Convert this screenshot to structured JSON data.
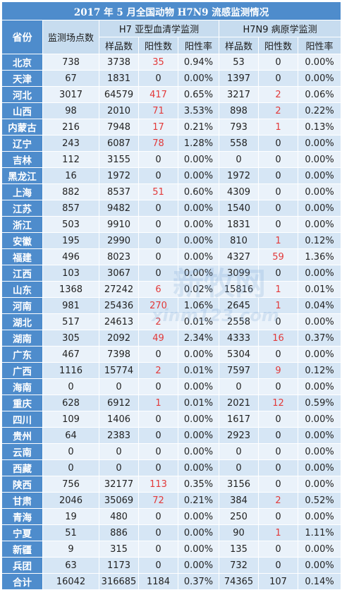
{
  "title": "2017 年 5 月全国动物 H7N9 流感监测情况",
  "headers": {
    "province": "省份",
    "sites": "监测场点数",
    "h7_group": "H7 亚型血清学监测",
    "h7n9_group": "H7N9 病原学监测",
    "samples": "样品数",
    "positives": "阳性数",
    "rate": "阳性率"
  },
  "rows": [
    {
      "province": "北京",
      "sites": "738",
      "h7_samples": "3738",
      "h7_pos": "35",
      "h7_rate": "0.94%",
      "n9_samples": "53",
      "n9_pos": "0",
      "n9_rate": "0.00%"
    },
    {
      "province": "天津",
      "sites": "67",
      "h7_samples": "1831",
      "h7_pos": "0",
      "h7_rate": "0.00%",
      "n9_samples": "1397",
      "n9_pos": "0",
      "n9_rate": "0.00%"
    },
    {
      "province": "河北",
      "sites": "3017",
      "h7_samples": "64579",
      "h7_pos": "417",
      "h7_rate": "0.65%",
      "n9_samples": "3217",
      "n9_pos": "2",
      "n9_rate": "0.06%"
    },
    {
      "province": "山西",
      "sites": "98",
      "h7_samples": "2010",
      "h7_pos": "71",
      "h7_rate": "3.53%",
      "n9_samples": "898",
      "n9_pos": "2",
      "n9_rate": "0.22%"
    },
    {
      "province": "内蒙古",
      "sites": "216",
      "h7_samples": "7948",
      "h7_pos": "17",
      "h7_rate": "0.21%",
      "n9_samples": "793",
      "n9_pos": "1",
      "n9_rate": "0.13%"
    },
    {
      "province": "辽宁",
      "sites": "243",
      "h7_samples": "6087",
      "h7_pos": "78",
      "h7_rate": "1.28%",
      "n9_samples": "558",
      "n9_pos": "0",
      "n9_rate": "0.00%"
    },
    {
      "province": "吉林",
      "sites": "112",
      "h7_samples": "3155",
      "h7_pos": "0",
      "h7_rate": "0.00%",
      "n9_samples": "0",
      "n9_pos": "0",
      "n9_rate": "0.00%"
    },
    {
      "province": "黑龙江",
      "sites": "16",
      "h7_samples": "1972",
      "h7_pos": "0",
      "h7_rate": "0.00%",
      "n9_samples": "1972",
      "n9_pos": "0",
      "n9_rate": "0.00%"
    },
    {
      "province": "上海",
      "sites": "882",
      "h7_samples": "8537",
      "h7_pos": "51",
      "h7_rate": "0.60%",
      "n9_samples": "4309",
      "n9_pos": "0",
      "n9_rate": "0.00%"
    },
    {
      "province": "江苏",
      "sites": "857",
      "h7_samples": "9482",
      "h7_pos": "0",
      "h7_rate": "0.00%",
      "n9_samples": "1540",
      "n9_pos": "0",
      "n9_rate": "0.00%"
    },
    {
      "province": "浙江",
      "sites": "503",
      "h7_samples": "9910",
      "h7_pos": "0",
      "h7_rate": "0.00%",
      "n9_samples": "1831",
      "n9_pos": "0",
      "n9_rate": "0.00%"
    },
    {
      "province": "安徽",
      "sites": "195",
      "h7_samples": "2990",
      "h7_pos": "0",
      "h7_rate": "0.00%",
      "n9_samples": "810",
      "n9_pos": "1",
      "n9_rate": "0.12%"
    },
    {
      "province": "福建",
      "sites": "496",
      "h7_samples": "8023",
      "h7_pos": "0",
      "h7_rate": "0.00%",
      "n9_samples": "4327",
      "n9_pos": "59",
      "n9_rate": "1.36%"
    },
    {
      "province": "江西",
      "sites": "103",
      "h7_samples": "3067",
      "h7_pos": "0",
      "h7_rate": "0.00%",
      "n9_samples": "3099",
      "n9_pos": "0",
      "n9_rate": "0.00%"
    },
    {
      "province": "山东",
      "sites": "1368",
      "h7_samples": "27242",
      "h7_pos": "6",
      "h7_rate": "0.02%",
      "n9_samples": "15816",
      "n9_pos": "1",
      "n9_rate": "0.01%"
    },
    {
      "province": "河南",
      "sites": "981",
      "h7_samples": "25436",
      "h7_pos": "270",
      "h7_rate": "1.06%",
      "n9_samples": "2645",
      "n9_pos": "1",
      "n9_rate": "0.04%"
    },
    {
      "province": "湖北",
      "sites": "517",
      "h7_samples": "24613",
      "h7_pos": "2",
      "h7_rate": "0.01%",
      "n9_samples": "2558",
      "n9_pos": "0",
      "n9_rate": "0.00%"
    },
    {
      "province": "湖南",
      "sites": "305",
      "h7_samples": "2092",
      "h7_pos": "49",
      "h7_rate": "2.34%",
      "n9_samples": "4333",
      "n9_pos": "16",
      "n9_rate": "0.37%"
    },
    {
      "province": "广东",
      "sites": "467",
      "h7_samples": "7398",
      "h7_pos": "0",
      "h7_rate": "0.00%",
      "n9_samples": "5304",
      "n9_pos": "0",
      "n9_rate": "0.00%"
    },
    {
      "province": "广西",
      "sites": "1116",
      "h7_samples": "15774",
      "h7_pos": "2",
      "h7_rate": "0.01%",
      "n9_samples": "7597",
      "n9_pos": "9",
      "n9_rate": "0.12%"
    },
    {
      "province": "海南",
      "sites": "0",
      "h7_samples": "0",
      "h7_pos": "0",
      "h7_rate": "0.00%",
      "n9_samples": "0",
      "n9_pos": "0",
      "n9_rate": "0.00%"
    },
    {
      "province": "重庆",
      "sites": "628",
      "h7_samples": "6912",
      "h7_pos": "1",
      "h7_rate": "0.01%",
      "n9_samples": "2021",
      "n9_pos": "12",
      "n9_rate": "0.59%"
    },
    {
      "province": "四川",
      "sites": "109",
      "h7_samples": "1406",
      "h7_pos": "0",
      "h7_rate": "0.00%",
      "n9_samples": "1617",
      "n9_pos": "0",
      "n9_rate": "0.00%"
    },
    {
      "province": "贵州",
      "sites": "64",
      "h7_samples": "2383",
      "h7_pos": "0",
      "h7_rate": "0.00%",
      "n9_samples": "2923",
      "n9_pos": "0",
      "n9_rate": "0.00%"
    },
    {
      "province": "云南",
      "sites": "0",
      "h7_samples": "0",
      "h7_pos": "0",
      "h7_rate": "0.00%",
      "n9_samples": "0",
      "n9_pos": "0",
      "n9_rate": "0.00%"
    },
    {
      "province": "西藏",
      "sites": "0",
      "h7_samples": "0",
      "h7_pos": "0",
      "h7_rate": "0.00%",
      "n9_samples": "0",
      "n9_pos": "0",
      "n9_rate": "0.00%"
    },
    {
      "province": "陕西",
      "sites": "756",
      "h7_samples": "32177",
      "h7_pos": "113",
      "h7_rate": "0.35%",
      "n9_samples": "3156",
      "n9_pos": "0",
      "n9_rate": "0.00%"
    },
    {
      "province": "甘肃",
      "sites": "2046",
      "h7_samples": "35069",
      "h7_pos": "72",
      "h7_rate": "0.21%",
      "n9_samples": "384",
      "n9_pos": "2",
      "n9_rate": "0.52%"
    },
    {
      "province": "青海",
      "sites": "19",
      "h7_samples": "480",
      "h7_pos": "0",
      "h7_rate": "0.00%",
      "n9_samples": "250",
      "n9_pos": "0",
      "n9_rate": "0.00%"
    },
    {
      "province": "宁夏",
      "sites": "51",
      "h7_samples": "886",
      "h7_pos": "0",
      "h7_rate": "0.00%",
      "n9_samples": "90",
      "n9_pos": "1",
      "n9_rate": "1.11%"
    },
    {
      "province": "新疆",
      "sites": "9",
      "h7_samples": "315",
      "h7_pos": "0",
      "h7_rate": "0.00%",
      "n9_samples": "135",
      "n9_pos": "0",
      "n9_rate": "0.00%"
    },
    {
      "province": "兵团",
      "sites": "63",
      "h7_samples": "1173",
      "h7_pos": "0",
      "h7_rate": "0.00%",
      "n9_samples": "732",
      "n9_pos": "0",
      "n9_rate": "0.00%"
    }
  ],
  "total": {
    "province": "合计",
    "sites": "16042",
    "h7_samples": "316685",
    "h7_pos": "1184",
    "h7_rate": "0.37%",
    "n9_samples": "74365",
    "n9_pos": "107",
    "n9_rate": "0.14%"
  },
  "watermark": {
    "brand": "新牧网",
    "url": "xinm123.com"
  },
  "colors": {
    "header_blue": "#4e8ccc",
    "row_light": "#eaf2fa",
    "row_mid": "#d6e6f5",
    "positive_red": "#e23a3a"
  }
}
